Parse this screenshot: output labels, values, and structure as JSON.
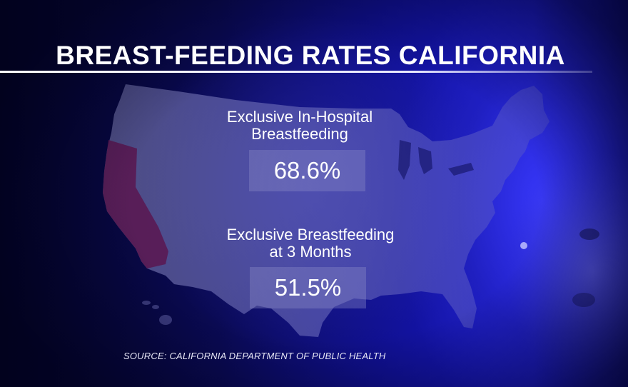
{
  "title": "BREAST-FEEDING RATES CALIFORNIA",
  "stats": [
    {
      "label_line1": "Exclusive In-Hospital",
      "label_line2": "Breastfeeding",
      "value": "68.6%"
    },
    {
      "label_line1": "Exclusive Breastfeeding",
      "label_line2": "at 3 Months",
      "value": "51.5%"
    }
  ],
  "source": "SOURCE: CALIFORNIA DEPARTMENT OF PUBLIC HEALTH",
  "colors": {
    "background_dark": "#04042a",
    "background_bright": "#1a1ad0",
    "map_fill": "#7070b8",
    "california_highlight": "#6a1c5a",
    "text": "#ffffff"
  },
  "icons": {
    "map": "usa-map-icon",
    "highlight": "california-state-highlight"
  }
}
